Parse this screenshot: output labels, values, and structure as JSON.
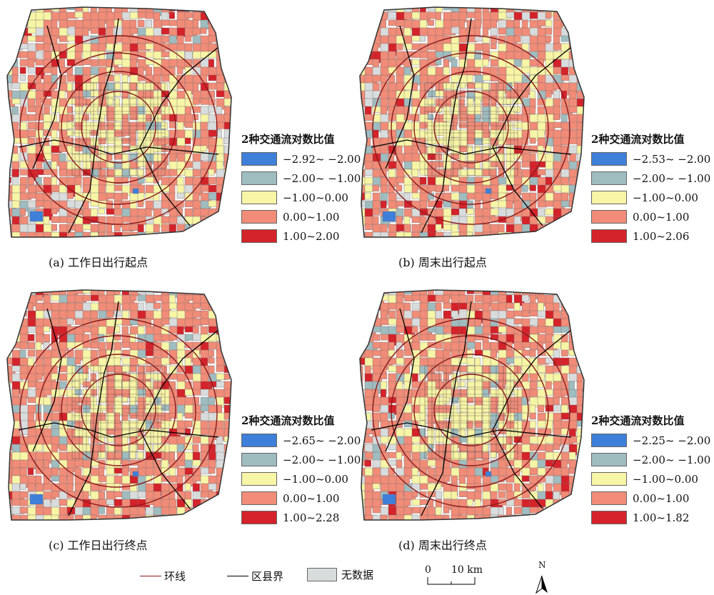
{
  "colors": {
    "class1": "#3e7fd9",
    "class2": "#9fbcbf",
    "class3": "#f7f5a6",
    "class4": "#f08c78",
    "class5": "#d4232a",
    "nodata": "#d9dcdd",
    "ring": "#8b1a1a",
    "district": "#000000"
  },
  "legend_title": "2种交通流对数比值",
  "panels": [
    {
      "caption": "(a) 工作日出行起点",
      "legend": [
        "−2.92~ −2.00",
        "−2.00~ −1.00",
        "−1.00~0.00",
        "0.00~1.00",
        "1.00~2.00"
      ]
    },
    {
      "caption": "(b) 周末出行起点",
      "legend": [
        "−2.53~ −2.00",
        "−2.00~ −1.00",
        "−1.00~0.00",
        "0.00~1.00",
        "1.00~2.06"
      ]
    },
    {
      "caption": "(c) 工作日出行终点",
      "legend": [
        "−2.65~ −2.00",
        "−2.00~ −1.00",
        "−1.00~0.00",
        "0.00~1.00",
        "1.00~2.28"
      ]
    },
    {
      "caption": "(d) 周末出行终点",
      "legend": [
        "−2.25~ −2.00",
        "−2.00~ −1.00",
        "−1.00~0.00",
        "0.00~1.00",
        "1.00~1.82"
      ]
    }
  ],
  "bottom_legend": {
    "ring_label": "环线",
    "district_label": "区县界",
    "nodata_label": "无数据"
  },
  "scale_bar": {
    "zero": "0",
    "distance": "10 km"
  },
  "north_label": "N"
}
